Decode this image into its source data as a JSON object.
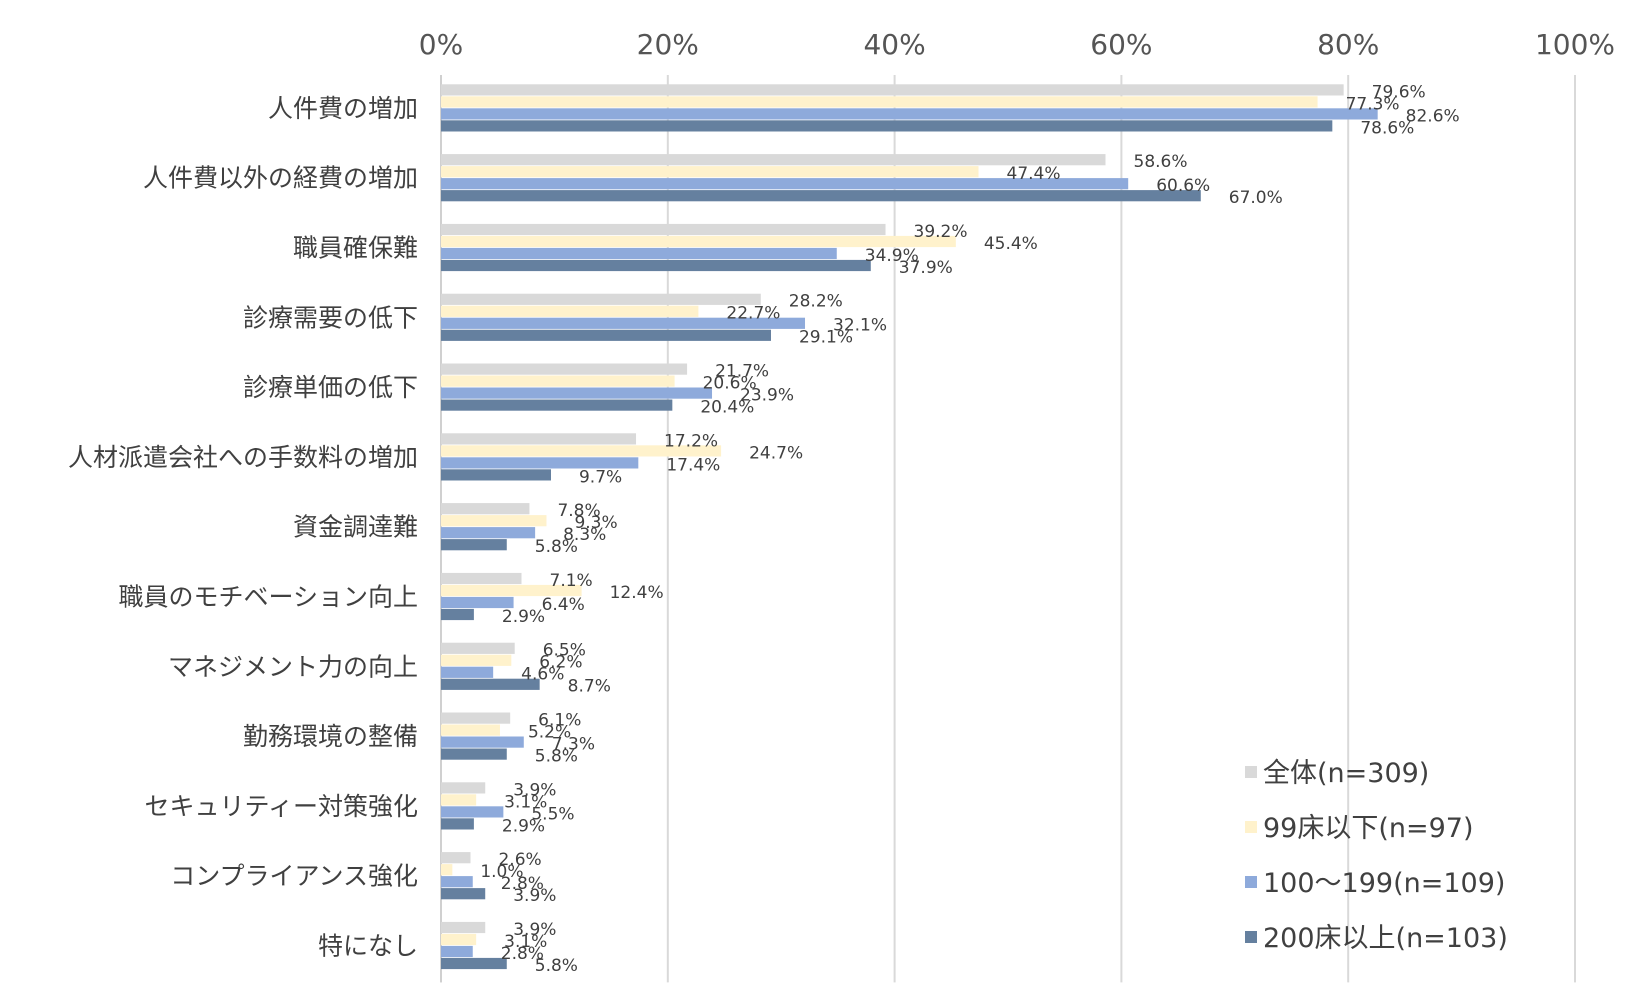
{
  "chart_data": {
    "type": "bar",
    "orientation": "horizontal",
    "title": "",
    "xlabel": "",
    "ylabel": "",
    "xlim": [
      0,
      100
    ],
    "xticks": [
      "0%",
      "20%",
      "40%",
      "60%",
      "80%",
      "100%"
    ],
    "grid": true,
    "legend_position": "bottom-right",
    "categories": [
      "人件費の増加",
      "人件費以外の経費の増加",
      "職員確保難",
      "診療需要の低下",
      "診療単価の低下",
      "人材派遣会社への手数料の増加",
      "資金調達難",
      "職員のモチベーション向上",
      "マネジメント力の向上",
      "勤務環境の整備",
      "セキュリティー対策強化",
      "コンプライアンス強化",
      "特になし"
    ],
    "series": [
      {
        "name": "全体(n=309)",
        "color": "#d9d9d9",
        "values": [
          79.6,
          58.6,
          39.2,
          28.2,
          21.7,
          17.2,
          7.8,
          7.1,
          6.5,
          6.1,
          3.9,
          2.6,
          3.9
        ],
        "labels": [
          "79.6%",
          "58.6%",
          "39.2%",
          "28.2%",
          "21.7%",
          "17.2%",
          "7.8%",
          "7.1%",
          "6.5%",
          "6.1%",
          "3.9%",
          "2.6%",
          "3.9%"
        ]
      },
      {
        "name": "99床以下(n=97)",
        "color": "#fff2cc",
        "values": [
          77.3,
          47.4,
          45.4,
          22.7,
          20.6,
          24.7,
          9.3,
          12.4,
          6.2,
          5.2,
          3.1,
          1.0,
          3.1
        ],
        "labels": [
          "77.3%",
          "47.4%",
          "45.4%",
          "22.7%",
          "20.6%",
          "24.7%",
          "9.3%",
          "12.4%",
          "6.2%",
          "5.2%",
          "3.1%",
          "1.0%",
          "3.1%"
        ]
      },
      {
        "name": "100～199(n=109)",
        "color": "#8eaadb",
        "values": [
          82.6,
          60.6,
          34.9,
          32.1,
          23.9,
          17.4,
          8.3,
          6.4,
          4.6,
          7.3,
          5.5,
          2.8,
          2.8
        ],
        "labels": [
          "82.6%",
          "60.6%",
          "34.9%",
          "32.1%",
          "23.9%",
          "17.4%",
          "8.3%",
          "6.4%",
          "4.6%",
          "7.3%",
          "5.5%",
          "2.8%",
          "2.8%"
        ]
      },
      {
        "name": "200床以上(n=103)",
        "color": "#65809f",
        "values": [
          78.6,
          67.0,
          37.9,
          29.1,
          20.4,
          9.7,
          5.8,
          2.9,
          8.7,
          5.8,
          2.9,
          3.9,
          5.8
        ],
        "labels": [
          "78.6%",
          "67.0%",
          "37.9%",
          "29.1%",
          "20.4%",
          "9.7%",
          "5.8%",
          "2.9%",
          "8.7%",
          "5.8%",
          "2.9%",
          "3.9%",
          "5.8%"
        ]
      }
    ]
  }
}
